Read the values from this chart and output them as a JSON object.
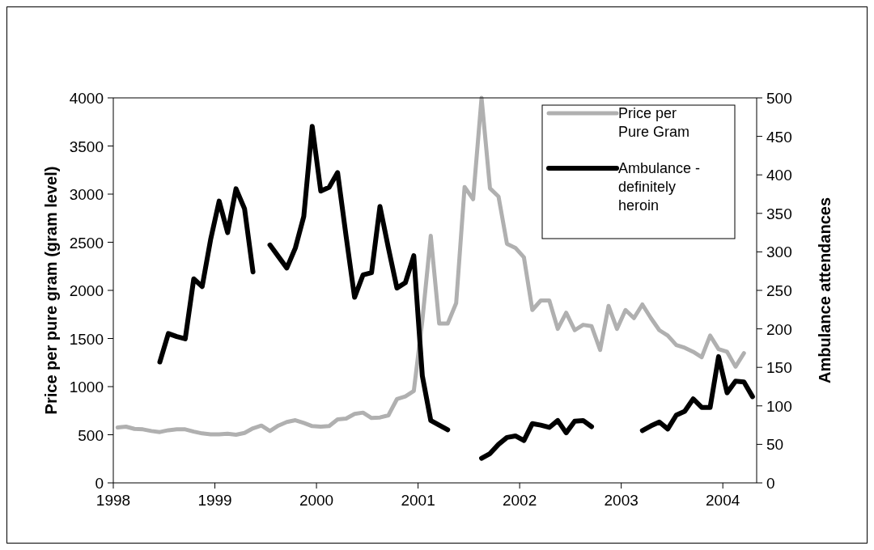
{
  "chart_data": {
    "type": "line",
    "xlabel": null,
    "ylabel": "Price per pure gram (gram level)",
    "y2label": "Ambulance attendances",
    "x": [
      1998.042,
      1998.125,
      1998.208,
      1998.292,
      1998.375,
      1998.458,
      1998.542,
      1998.625,
      1998.708,
      1998.792,
      1998.875,
      1998.958,
      1999.042,
      1999.125,
      1999.208,
      1999.292,
      1999.375,
      1999.458,
      1999.542,
      1999.625,
      1999.708,
      1999.792,
      1999.875,
      1999.958,
      2000.042,
      2000.125,
      2000.208,
      2000.292,
      2000.375,
      2000.458,
      2000.542,
      2000.625,
      2000.708,
      2000.792,
      2000.875,
      2000.958,
      2001.042,
      2001.125,
      2001.208,
      2001.292,
      2001.375,
      2001.458,
      2001.542,
      2001.625,
      2001.708,
      2001.792,
      2001.875,
      2001.958,
      2002.042,
      2002.125,
      2002.208,
      2002.292,
      2002.375,
      2002.458,
      2002.542,
      2002.625,
      2002.708,
      2002.792,
      2002.875,
      2002.958,
      2003.042,
      2003.125,
      2003.208,
      2003.292,
      2003.375,
      2003.458,
      2003.542,
      2003.625,
      2003.708,
      2003.792,
      2003.875,
      2003.958,
      2004.042,
      2004.125,
      2004.208,
      2004.292
    ],
    "series": [
      {
        "name": "Price per Pure Gram",
        "color": "#b0b0b0",
        "values": [
          575,
          584,
          561,
          556,
          539,
          528,
          547,
          556,
          556,
          533,
          514,
          505,
          505,
          511,
          500,
          519,
          567,
          595,
          539,
          595,
          632,
          651,
          623,
          590,
          584,
          590,
          660,
          668,
          716,
          730,
          674,
          679,
          702,
          870,
          898,
          954,
          1684,
          2568,
          1656,
          1656,
          1867,
          3074,
          2947,
          4000,
          3060,
          2975,
          2484,
          2442,
          2344,
          1796,
          1895,
          1895,
          1600,
          1768,
          1586,
          1642,
          1628,
          1381,
          1839,
          1600,
          1796,
          1712,
          1853,
          1712,
          1586,
          1530,
          1432,
          1404,
          1362,
          1305,
          1530,
          1390,
          1362,
          1207,
          1348,
          null
        ]
      },
      {
        "name": "Ambulance - definitely heroin",
        "color": "#000000",
        "axis": "y2",
        "values": [
          null,
          null,
          null,
          null,
          null,
          157,
          194,
          190,
          187,
          265,
          255,
          316,
          366,
          325,
          382,
          356,
          274,
          null,
          309,
          294,
          279,
          305,
          346,
          463,
          379,
          384,
          403,
          320,
          241,
          270,
          273,
          359,
          305,
          253,
          260,
          295,
          139,
          81,
          75,
          69,
          null,
          null,
          null,
          32,
          38,
          50,
          59,
          61,
          55,
          77,
          75,
          72,
          81,
          65,
          80,
          81,
          73,
          null,
          null,
          null,
          null,
          null,
          68,
          74,
          79,
          70,
          88,
          93,
          109,
          98,
          98,
          164,
          117,
          132,
          131,
          112
        ]
      }
    ],
    "xlim": [
      1998,
      2004.333
    ],
    "xticks": [
      1998,
      1999,
      2000,
      2001,
      2002,
      2003,
      2004
    ],
    "ylim": [
      0,
      4000
    ],
    "yticks": [
      0,
      500,
      1000,
      1500,
      2000,
      2500,
      3000,
      3500,
      4000
    ],
    "y2lim": [
      0,
      500
    ],
    "y2ticks": [
      0,
      50,
      100,
      150,
      200,
      250,
      300,
      350,
      400,
      450,
      500
    ],
    "legend": "top right",
    "grid": false,
    "marker": "none",
    "line_style": "solid"
  }
}
